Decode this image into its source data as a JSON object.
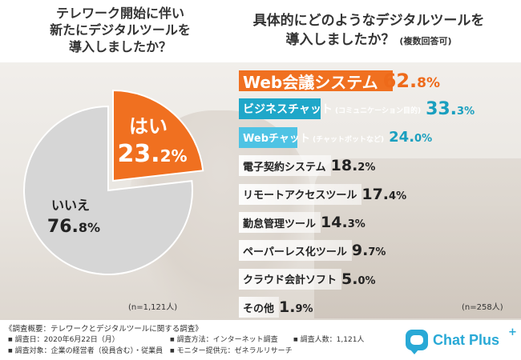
{
  "left_title": [
    "テレワーク開始に伴い",
    "新たにデジタルツールを",
    "導入しましたか？"
  ],
  "right_title": [
    "具体的にどのようなデジタルツールを",
    "導入しましたか？"
  ],
  "right_title_sub": "(複数回答可)",
  "left_n": "(n=1,121人)",
  "right_n": "(n=258人)",
  "colors": {
    "orange": "#f07020",
    "cyan": "#1fa7c9",
    "light_cyan": "#4fc3e4",
    "gray": "#d6d6d6"
  },
  "chart_data": [
    {
      "type": "pie",
      "slices": [
        {
          "label": "はい",
          "value": 23.2,
          "display_int": "23.",
          "display_dec": "2%"
        },
        {
          "label": "いいえ",
          "value": 76.8,
          "display_int": "76.",
          "display_dec": "8%"
        }
      ]
    },
    {
      "type": "bar",
      "categories": [
        "Web会議システム",
        "ビジネスチャット",
        "Webチャット",
        "電子契約システム",
        "リモートアクセスツール",
        "勤怠管理ツール",
        "ペーパーレス化ツール",
        "クラウド会計ソフト",
        "その他"
      ],
      "notes": [
        "",
        "(コミュニケーション目的)",
        "(チャットボットなど)",
        "",
        "",
        "",
        "",
        "",
        ""
      ],
      "values": [
        62.8,
        33.3,
        24.0,
        18.2,
        17.4,
        14.3,
        9.7,
        5.0,
        1.9
      ],
      "value_int": [
        "62.",
        "33.",
        "24.",
        "18.",
        "17.",
        "14.",
        "9.",
        "5.",
        "1."
      ],
      "value_dec": [
        "8%",
        "3%",
        "0%",
        "2%",
        "4%",
        "3%",
        "7%",
        "0%",
        "9%"
      ]
    }
  ],
  "footer": {
    "heading": "《調査概要：テレワークとデジタルツールに関する調査》",
    "date": "調査日：2020年6月22日（月）",
    "method": "調査方法：インターネット調査",
    "count": "調査人数：1,121人",
    "target": "調査対象：企業の経営者（役員含む）・従業員",
    "monitor": "モニター提供元：ゼネラルリサーチ"
  },
  "logo": {
    "text": "Chat Plus",
    "plus": "+",
    "icon": "chat-bubble-icon"
  }
}
